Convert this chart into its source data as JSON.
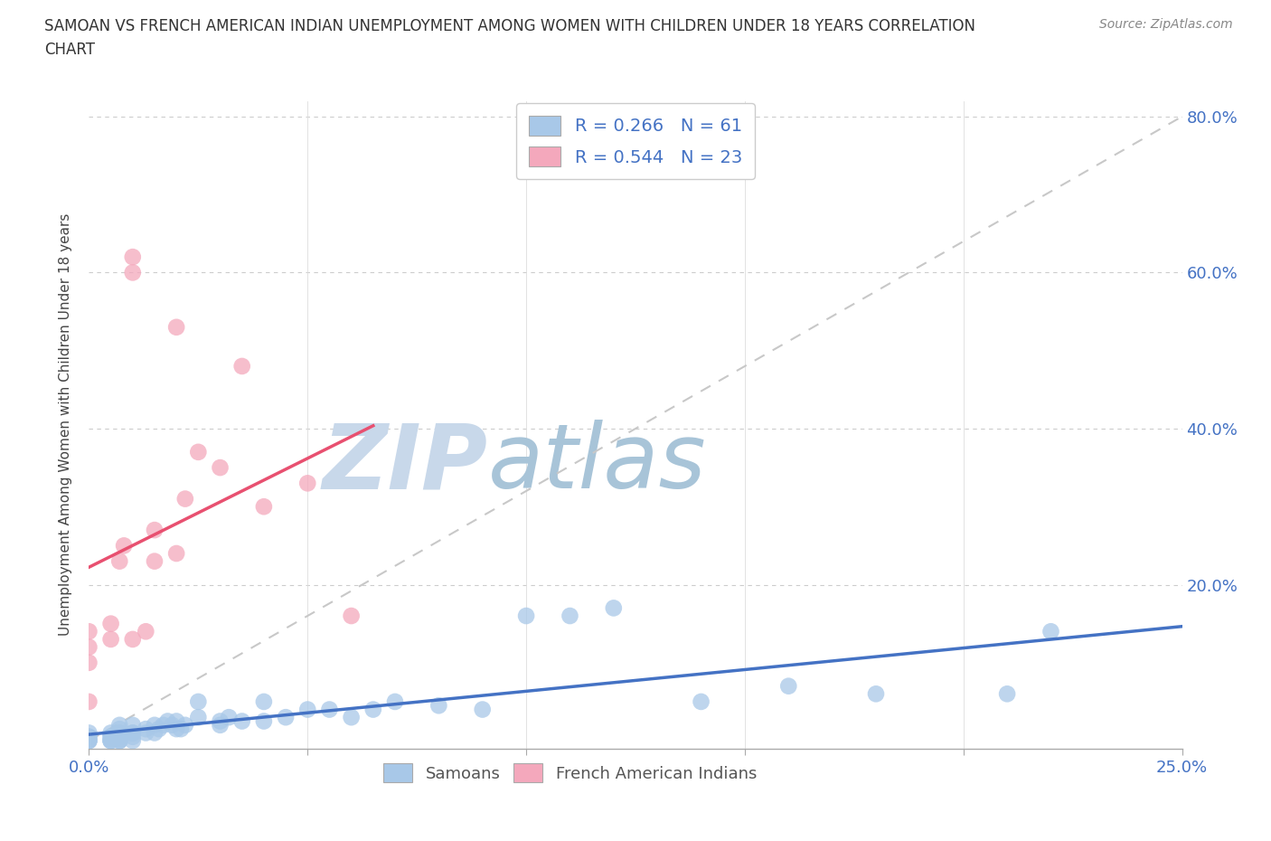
{
  "title_line1": "SAMOAN VS FRENCH AMERICAN INDIAN UNEMPLOYMENT AMONG WOMEN WITH CHILDREN UNDER 18 YEARS CORRELATION",
  "title_line2": "CHART",
  "source_text": "Source: ZipAtlas.com",
  "ylabel": "Unemployment Among Women with Children Under 18 years",
  "xlim": [
    0.0,
    0.25
  ],
  "ylim": [
    -0.01,
    0.82
  ],
  "xticks": [
    0.0,
    0.05,
    0.1,
    0.15,
    0.2,
    0.25
  ],
  "xtick_labels": [
    "0.0%",
    "",
    "",
    "",
    "",
    "25.0%"
  ],
  "yticks": [
    0.0,
    0.2,
    0.4,
    0.6,
    0.8
  ],
  "ytick_labels": [
    "",
    "20.0%",
    "40.0%",
    "60.0%",
    "80.0%"
  ],
  "samoan_R": 0.266,
  "samoan_N": 61,
  "french_R": 0.544,
  "french_N": 23,
  "samoan_dot_color": "#a8c8e8",
  "french_dot_color": "#f4a8bc",
  "samoan_line_color": "#4472c4",
  "french_line_color": "#e85070",
  "diagonal_color": "#c8c8c8",
  "watermark_zip_color": "#c8d8e8",
  "watermark_atlas_color": "#b0c8d8",
  "background_color": "#ffffff",
  "samoan_x": [
    0.0,
    0.0,
    0.0,
    0.0,
    0.0,
    0.0,
    0.005,
    0.005,
    0.005,
    0.005,
    0.005,
    0.005,
    0.007,
    0.007,
    0.007,
    0.007,
    0.007,
    0.007,
    0.007,
    0.007,
    0.01,
    0.01,
    0.01,
    0.01,
    0.01,
    0.013,
    0.013,
    0.015,
    0.015,
    0.016,
    0.017,
    0.018,
    0.019,
    0.02,
    0.02,
    0.021,
    0.022,
    0.025,
    0.025,
    0.03,
    0.03,
    0.032,
    0.035,
    0.04,
    0.04,
    0.045,
    0.05,
    0.055,
    0.06,
    0.065,
    0.07,
    0.08,
    0.09,
    0.1,
    0.11,
    0.12,
    0.14,
    0.16,
    0.18,
    0.21,
    0.22
  ],
  "samoan_y": [
    0.0,
    0.0,
    0.0,
    0.005,
    0.005,
    0.01,
    0.0,
    0.0,
    0.0,
    0.005,
    0.005,
    0.01,
    0.0,
    0.0,
    0.0,
    0.005,
    0.01,
    0.01,
    0.015,
    0.02,
    0.0,
    0.005,
    0.01,
    0.01,
    0.02,
    0.01,
    0.015,
    0.01,
    0.02,
    0.015,
    0.02,
    0.025,
    0.02,
    0.015,
    0.025,
    0.015,
    0.02,
    0.03,
    0.05,
    0.02,
    0.025,
    0.03,
    0.025,
    0.025,
    0.05,
    0.03,
    0.04,
    0.04,
    0.03,
    0.04,
    0.05,
    0.045,
    0.04,
    0.16,
    0.16,
    0.17,
    0.05,
    0.07,
    0.06,
    0.06,
    0.14
  ],
  "french_x": [
    0.0,
    0.0,
    0.0,
    0.0,
    0.005,
    0.005,
    0.007,
    0.008,
    0.01,
    0.01,
    0.01,
    0.013,
    0.015,
    0.015,
    0.02,
    0.02,
    0.022,
    0.025,
    0.03,
    0.035,
    0.04,
    0.05,
    0.06
  ],
  "french_y": [
    0.05,
    0.1,
    0.12,
    0.14,
    0.13,
    0.15,
    0.23,
    0.25,
    0.13,
    0.6,
    0.62,
    0.14,
    0.23,
    0.27,
    0.24,
    0.53,
    0.31,
    0.37,
    0.35,
    0.48,
    0.3,
    0.33,
    0.16
  ]
}
